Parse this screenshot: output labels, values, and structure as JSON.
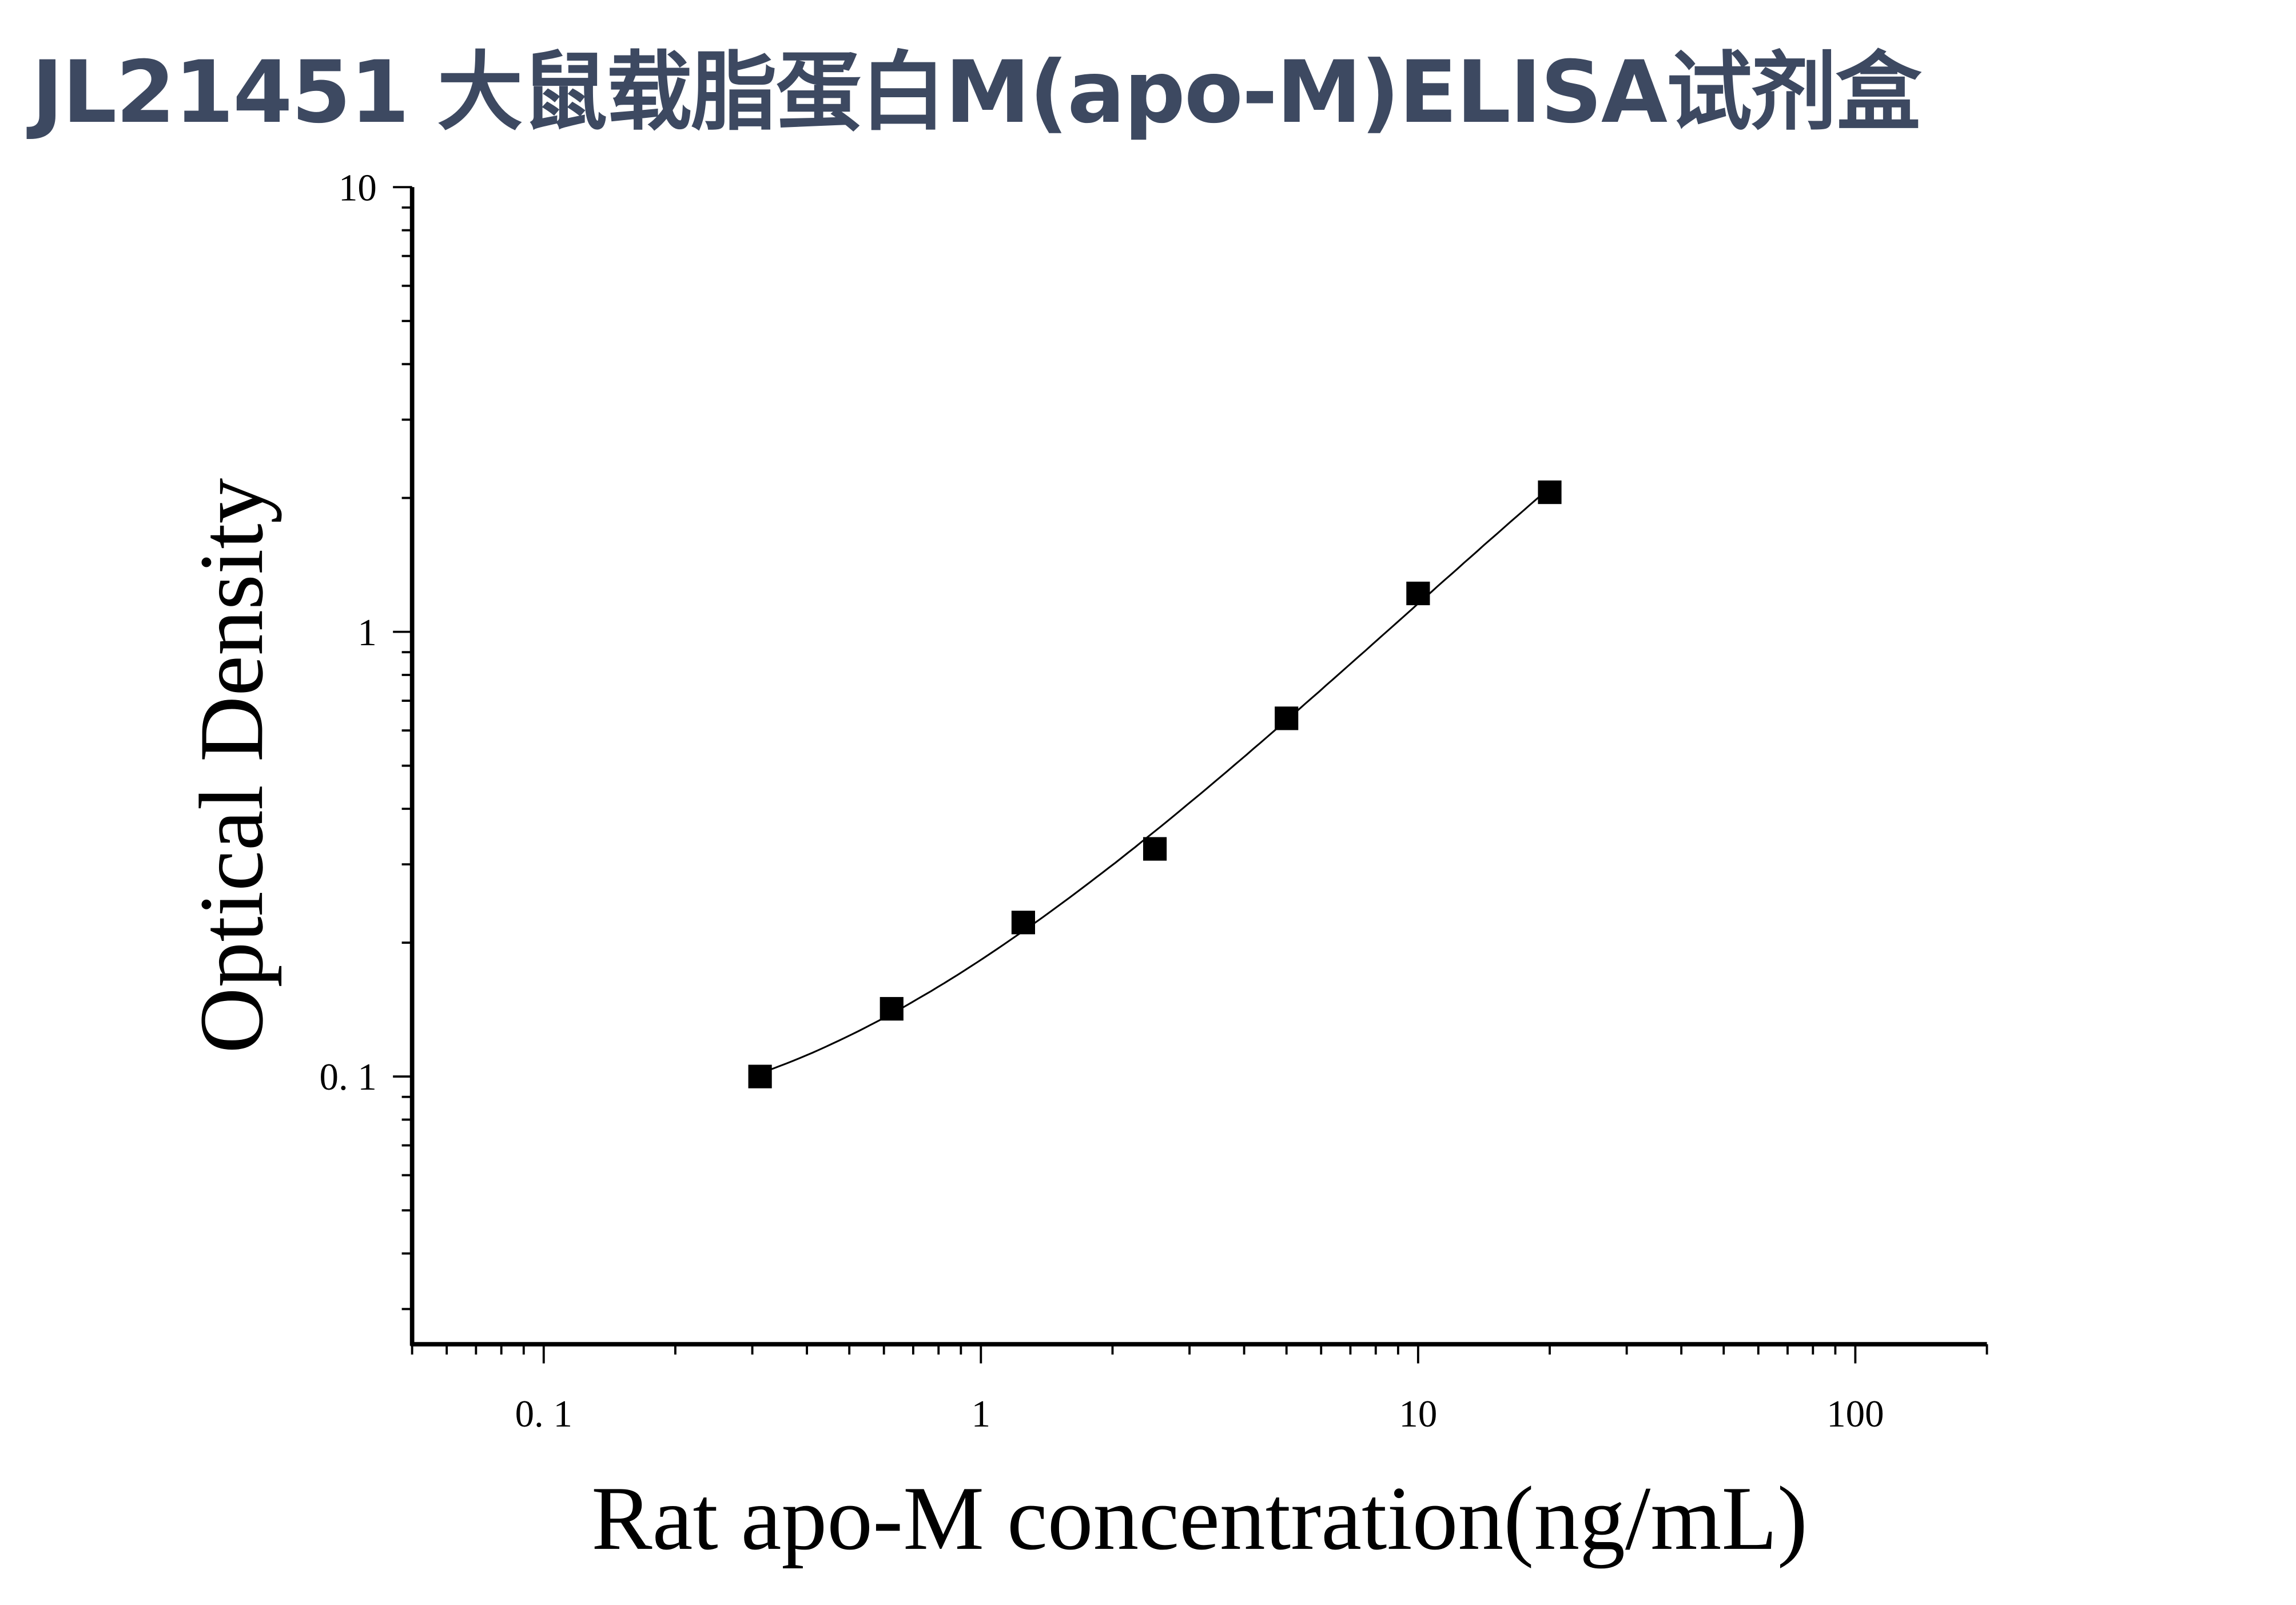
{
  "title": "JL21451 大鼠载脂蛋白M(apo-M)ELISA试剂盒",
  "colors": {
    "title": "#3d4961",
    "marks": "#000000"
  },
  "chart_data": {
    "type": "scatter",
    "title": "JL21451 大鼠载脂蛋白M(apo-M)ELISA试剂盒",
    "xlabel": "Rat apo-M concentration(ng/mL)",
    "ylabel": "Optical Density",
    "xscale": "log",
    "yscale": "log",
    "xlim": [
      0.05,
      200
    ],
    "ylim": [
      0.025,
      10
    ],
    "xticks": [
      {
        "value": 0.1,
        "label": "0. 1"
      },
      {
        "value": 1,
        "label": "1"
      },
      {
        "value": 10,
        "label": "10"
      },
      {
        "value": 100,
        "label": "100"
      }
    ],
    "yticks": [
      {
        "value": 0.1,
        "label": "0. 1"
      },
      {
        "value": 1,
        "label": "1"
      },
      {
        "value": 10,
        "label": "10"
      }
    ],
    "grid": false,
    "marker": "square",
    "fit_curve": true,
    "x": [
      0.3125,
      0.625,
      1.25,
      2.5,
      5,
      10,
      20
    ],
    "y": [
      0.1,
      0.142,
      0.222,
      0.325,
      0.639,
      1.22,
      2.06
    ]
  }
}
